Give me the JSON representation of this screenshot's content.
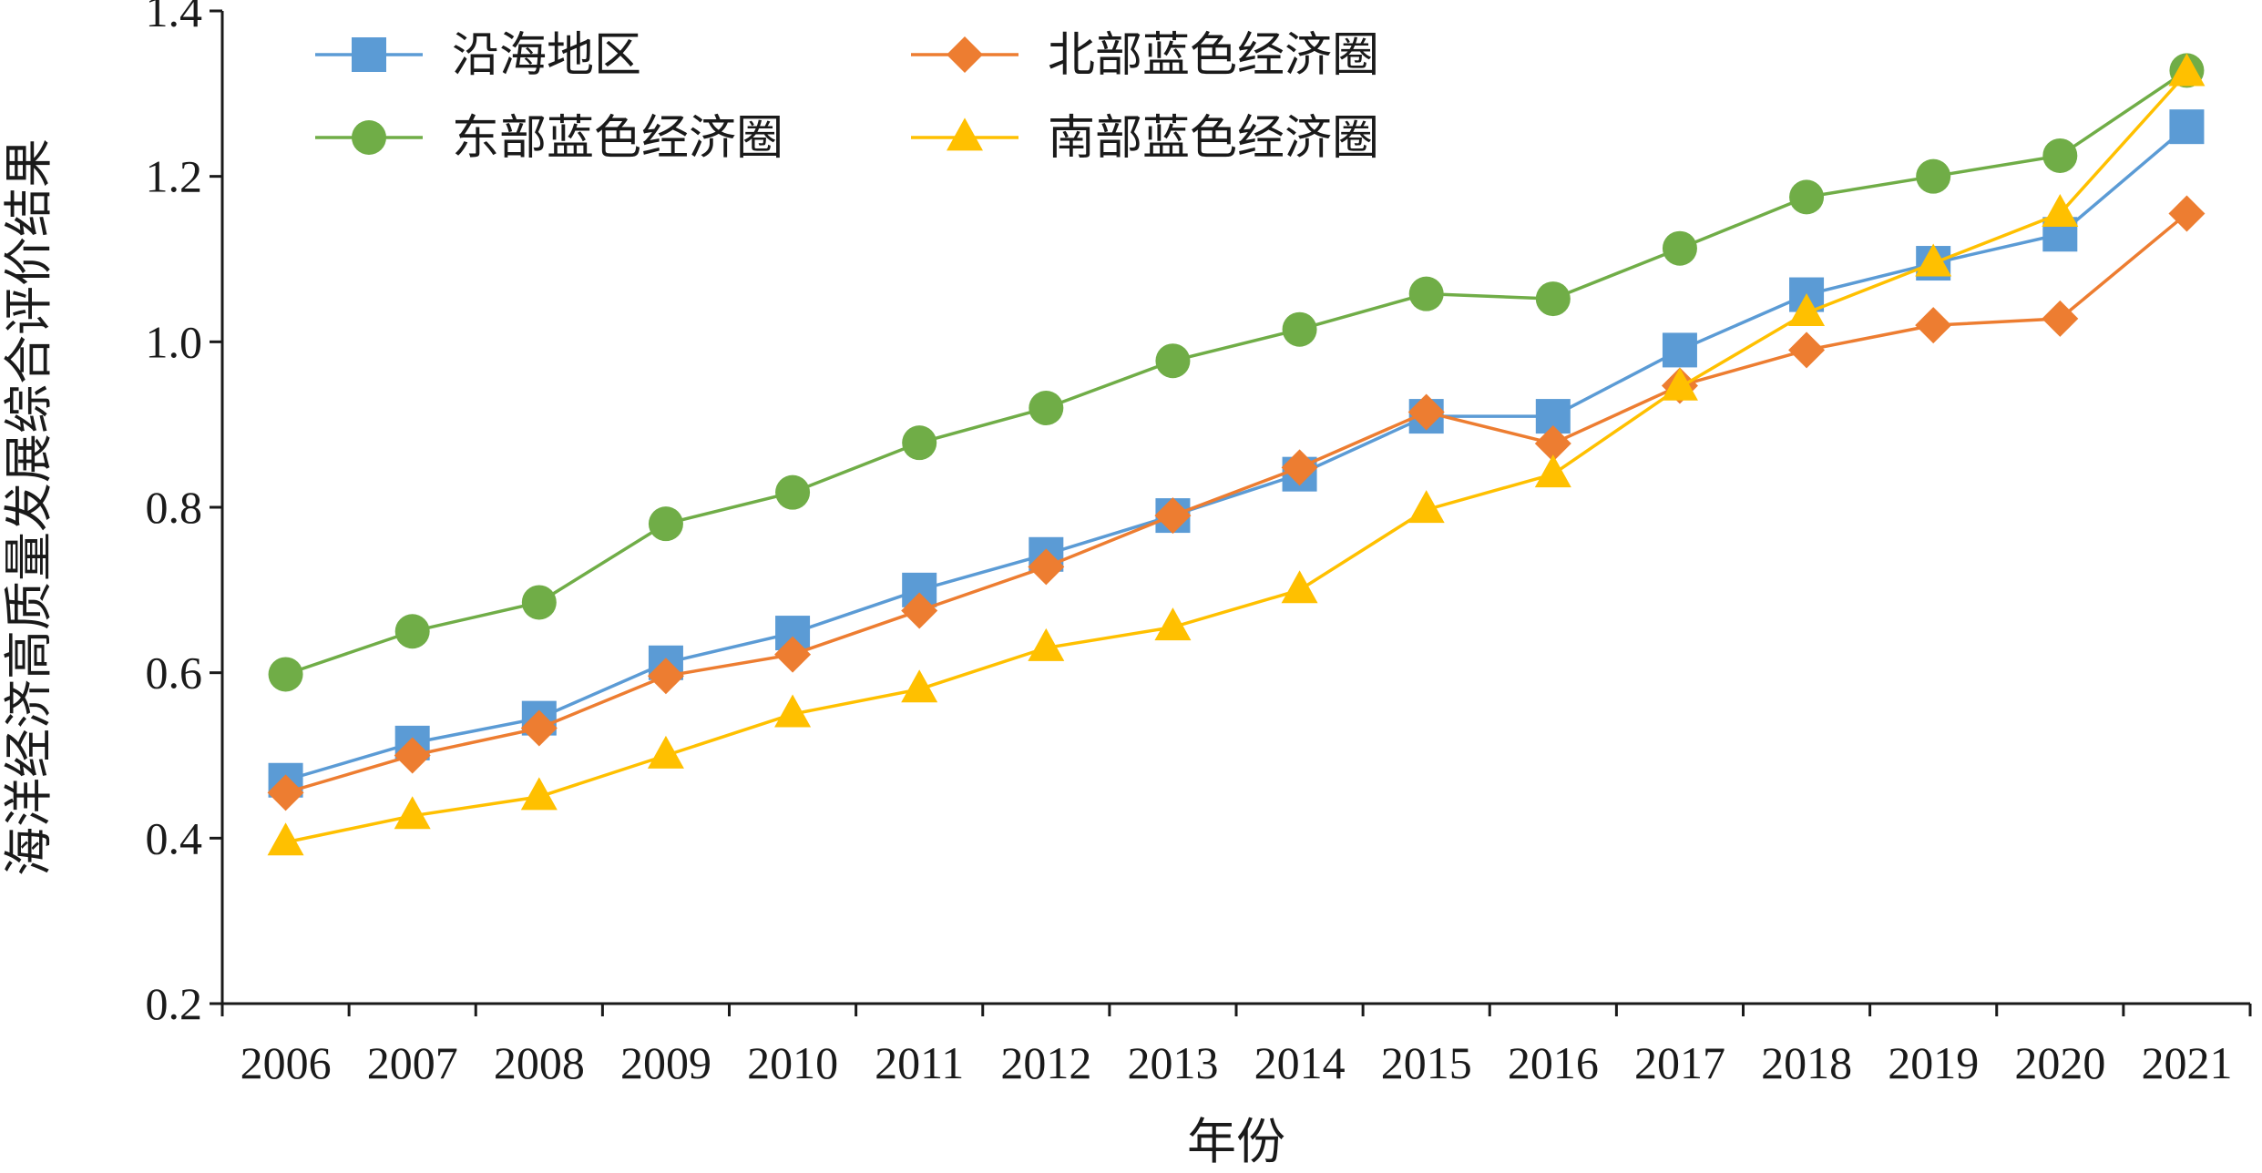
{
  "chart_data": {
    "type": "line",
    "xlabel": "年份",
    "ylabel": "海洋经济高质量发展综合评价结果",
    "ylim": [
      0.2,
      1.4
    ],
    "yticks": [
      "0.2",
      "0.4",
      "0.6",
      "0.8",
      "1.0",
      "1.2",
      "1.4"
    ],
    "categories": [
      "2006",
      "2007",
      "2008",
      "2009",
      "2010",
      "2011",
      "2012",
      "2013",
      "2014",
      "2015",
      "2016",
      "2017",
      "2018",
      "2019",
      "2020",
      "2021"
    ],
    "grid": false,
    "legend_position": "top-left",
    "series": [
      {
        "name": "沿海地区",
        "color": "#5B9BD5",
        "marker": "square",
        "values": [
          0.47,
          0.515,
          0.545,
          0.612,
          0.648,
          0.7,
          0.743,
          0.79,
          0.84,
          0.91,
          0.91,
          0.99,
          1.057,
          1.095,
          1.13,
          1.26
        ]
      },
      {
        "name": "北部蓝色经济圈",
        "color": "#ED7D31",
        "marker": "diamond",
        "values": [
          0.455,
          0.5,
          0.533,
          0.596,
          0.622,
          0.675,
          0.728,
          0.79,
          0.848,
          0.915,
          0.877,
          0.947,
          0.99,
          1.02,
          1.028,
          1.155
        ]
      },
      {
        "name": "东部蓝色经济圈",
        "color": "#70AD47",
        "marker": "circle",
        "values": [
          0.598,
          0.65,
          0.685,
          0.78,
          0.818,
          0.878,
          0.92,
          0.977,
          1.015,
          1.058,
          1.052,
          1.113,
          1.175,
          1.2,
          1.225,
          1.328
        ]
      },
      {
        "name": "南部蓝色经济圈",
        "color": "#FFC000",
        "marker": "triangle",
        "values": [
          0.395,
          0.427,
          0.45,
          0.5,
          0.55,
          0.58,
          0.63,
          0.655,
          0.7,
          0.797,
          0.84,
          0.945,
          1.035,
          1.095,
          1.155,
          1.325
        ]
      }
    ],
    "legend_order": [
      0,
      1,
      2,
      3
    ]
  }
}
